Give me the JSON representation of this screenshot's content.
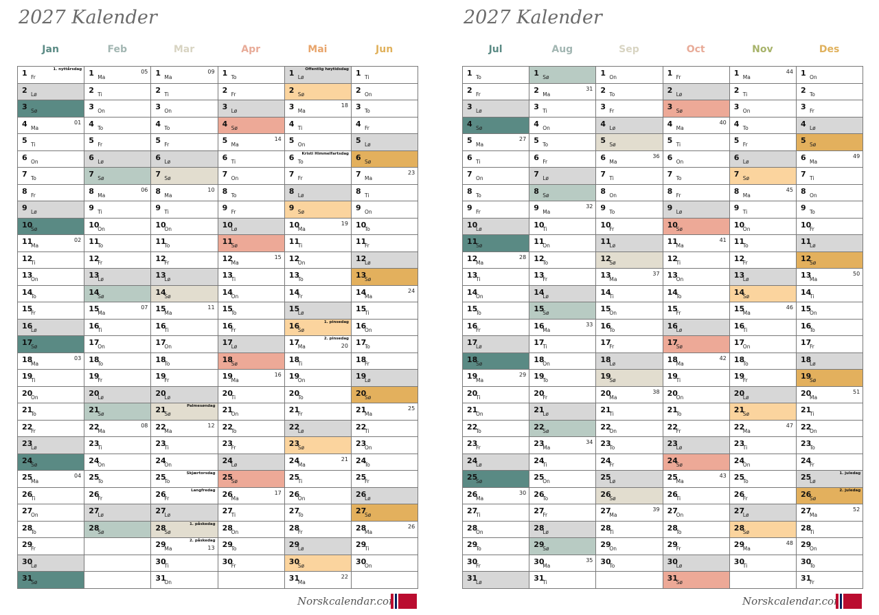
{
  "year_label": "2027 Kalender",
  "brand": "Norskcalendar.com",
  "day_abbr": [
    "Ma",
    "Ti",
    "On",
    "To",
    "Fr",
    "Lø",
    "Sø"
  ],
  "colors": {
    "lordag": "#d7d7d7",
    "sondag": [
      "#5a8a84",
      "#b8cbc3",
      "#e2ddcf",
      "#eda997",
      "#fbd49e",
      "#e3b05d"
    ],
    "month_text": [
      "#5a8a84",
      "#a2b6b2",
      "#d8d4c2",
      "#e8ab98",
      "#e8a56c",
      "#e0b15c",
      "#5a8a84",
      "#a2b6b2",
      "#d8d4c2",
      "#e8ab98",
      "#a7b36a",
      "#e0b15c"
    ],
    "flag_red": "#ba0c2f",
    "flag_blue": "#00205b"
  },
  "pages": [
    {
      "title": "2027 Kalender",
      "months": [
        {
          "name": "Jan",
          "start_weekday": 4,
          "days": 31,
          "sun_color_index": 0,
          "holidays": [
            {
              "day": 1,
              "label": "1. nyttårsdag"
            }
          ],
          "weeks": [
            {
              "day": 4,
              "label": "01"
            },
            {
              "day": 11,
              "label": "02"
            },
            {
              "day": 18,
              "label": "03"
            },
            {
              "day": 25,
              "label": "04"
            }
          ]
        },
        {
          "name": "Feb",
          "start_weekday": 0,
          "days": 28,
          "sun_color_index": 1,
          "holidays": [],
          "weeks": [
            {
              "day": 1,
              "label": "05"
            },
            {
              "day": 8,
              "label": "06"
            },
            {
              "day": 15,
              "label": "07"
            },
            {
              "day": 22,
              "label": "08"
            }
          ]
        },
        {
          "name": "Mar",
          "start_weekday": 0,
          "days": 31,
          "sun_color_index": 2,
          "holidays": [
            {
              "day": 21,
              "label": "Palmesøndag"
            },
            {
              "day": 25,
              "label": "Skjærtorsdag"
            },
            {
              "day": 26,
              "label": "Langfredag"
            },
            {
              "day": 28,
              "label": "1. påskedag"
            },
            {
              "day": 29,
              "label": "2. påskedag"
            }
          ],
          "weeks": [
            {
              "day": 1,
              "label": "09"
            },
            {
              "day": 8,
              "label": "10"
            },
            {
              "day": 15,
              "label": "11"
            },
            {
              "day": 22,
              "label": "12"
            },
            {
              "day": 29,
              "label": "13"
            }
          ]
        },
        {
          "name": "Apr",
          "start_weekday": 3,
          "days": 30,
          "sun_color_index": 3,
          "holidays": [],
          "weeks": [
            {
              "day": 5,
              "label": "14"
            },
            {
              "day": 12,
              "label": "15"
            },
            {
              "day": 19,
              "label": "16"
            },
            {
              "day": 26,
              "label": "17"
            }
          ]
        },
        {
          "name": "Mai",
          "start_weekday": 5,
          "days": 31,
          "sun_color_index": 4,
          "holidays": [
            {
              "day": 1,
              "label": "Offentlig høytidsdag"
            },
            {
              "day": 6,
              "label": "Kristi Himmelfartsdag"
            },
            {
              "day": 16,
              "label": "1. pinsedag"
            },
            {
              "day": 17,
              "label": "2. pinsedag"
            }
          ],
          "weeks": [
            {
              "day": 3,
              "label": "18"
            },
            {
              "day": 10,
              "label": "19"
            },
            {
              "day": 17,
              "label": "20"
            },
            {
              "day": 24,
              "label": "21"
            },
            {
              "day": 31,
              "label": "22"
            }
          ]
        },
        {
          "name": "Jun",
          "start_weekday": 1,
          "days": 30,
          "sun_color_index": 5,
          "holidays": [],
          "weeks": [
            {
              "day": 7,
              "label": "23"
            },
            {
              "day": 14,
              "label": "24"
            },
            {
              "day": 21,
              "label": "25"
            },
            {
              "day": 28,
              "label": "26"
            }
          ]
        }
      ]
    },
    {
      "title": "2027 Kalender",
      "months": [
        {
          "name": "Jul",
          "start_weekday": 3,
          "days": 31,
          "sun_color_index": 0,
          "holidays": [],
          "weeks": [
            {
              "day": 5,
              "label": "27"
            },
            {
              "day": 12,
              "label": "28"
            },
            {
              "day": 19,
              "label": "29"
            },
            {
              "day": 26,
              "label": "30"
            }
          ]
        },
        {
          "name": "Aug",
          "start_weekday": 6,
          "days": 31,
          "sun_color_index": 1,
          "holidays": [],
          "weeks": [
            {
              "day": 2,
              "label": "31"
            },
            {
              "day": 9,
              "label": "32"
            },
            {
              "day": 16,
              "label": "33"
            },
            {
              "day": 23,
              "label": "34"
            },
            {
              "day": 30,
              "label": "35"
            }
          ]
        },
        {
          "name": "Sep",
          "start_weekday": 2,
          "days": 30,
          "sun_color_index": 2,
          "holidays": [],
          "weeks": [
            {
              "day": 6,
              "label": "36"
            },
            {
              "day": 13,
              "label": "37"
            },
            {
              "day": 20,
              "label": "38"
            },
            {
              "day": 27,
              "label": "39"
            }
          ]
        },
        {
          "name": "Oct",
          "start_weekday": 4,
          "days": 31,
          "sun_color_index": 3,
          "holidays": [],
          "weeks": [
            {
              "day": 4,
              "label": "40"
            },
            {
              "day": 11,
              "label": "41"
            },
            {
              "day": 18,
              "label": "42"
            },
            {
              "day": 25,
              "label": "43"
            }
          ]
        },
        {
          "name": "Nov",
          "start_weekday": 0,
          "days": 30,
          "sun_color_index": 4,
          "holidays": [],
          "weeks": [
            {
              "day": 1,
              "label": "44"
            },
            {
              "day": 8,
              "label": "45"
            },
            {
              "day": 15,
              "label": "46"
            },
            {
              "day": 22,
              "label": "47"
            },
            {
              "day": 29,
              "label": "48"
            }
          ]
        },
        {
          "name": "Des",
          "start_weekday": 2,
          "days": 31,
          "sun_color_index": 5,
          "holidays": [
            {
              "day": 25,
              "label": "1. juledag"
            },
            {
              "day": 26,
              "label": "2. juledag"
            }
          ],
          "weeks": [
            {
              "day": 6,
              "label": "49"
            },
            {
              "day": 13,
              "label": "50"
            },
            {
              "day": 20,
              "label": "51"
            },
            {
              "day": 27,
              "label": "52"
            }
          ]
        }
      ]
    }
  ]
}
